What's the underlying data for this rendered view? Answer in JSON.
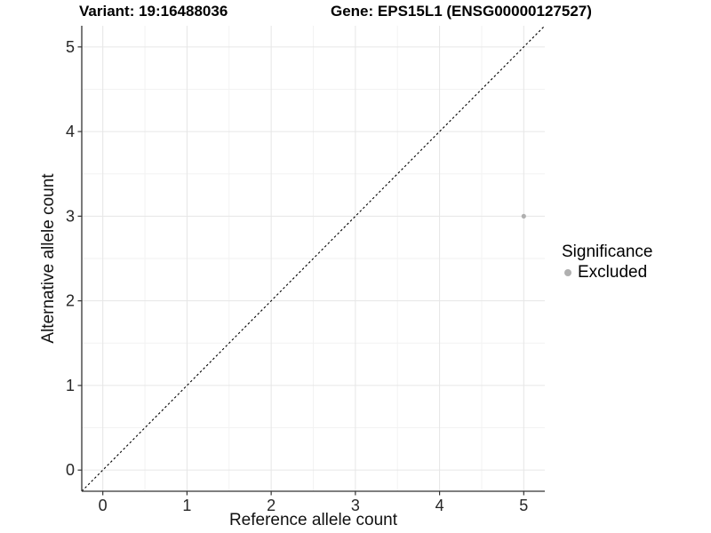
{
  "chart_data": {
    "type": "scatter",
    "title_left": "Variant: 19:16488036",
    "title_right": "Gene: EPS15L1 (ENSG00000127527)",
    "xlabel": "Reference allele count",
    "ylabel": "Alternative allele count",
    "xlim": [
      -0.25,
      5.25
    ],
    "ylim": [
      -0.25,
      5.25
    ],
    "xticks": [
      0,
      1,
      2,
      3,
      4,
      5
    ],
    "yticks": [
      0,
      1,
      2,
      3,
      4,
      5
    ],
    "minor_step": 0.5,
    "grid": true,
    "series": [
      {
        "name": "Excluded",
        "color": "#b0b0b0",
        "points": [
          {
            "x": 5,
            "y": 3
          }
        ]
      }
    ],
    "reference_line": {
      "type": "identity",
      "slope": 1,
      "intercept": 0,
      "style": "dashed",
      "color": "#000000"
    },
    "legend": {
      "title": "Significance",
      "position": "right",
      "entries": [
        {
          "label": "Excluded",
          "color": "#b0b0b0"
        }
      ]
    },
    "style": {
      "background": "#ffffff",
      "grid_major_color": "#e6e6e6",
      "grid_minor_color": "#f2f2f2",
      "axis_color": "#333333",
      "tick_label_color": "#262626",
      "point_radius": 2.6
    }
  }
}
